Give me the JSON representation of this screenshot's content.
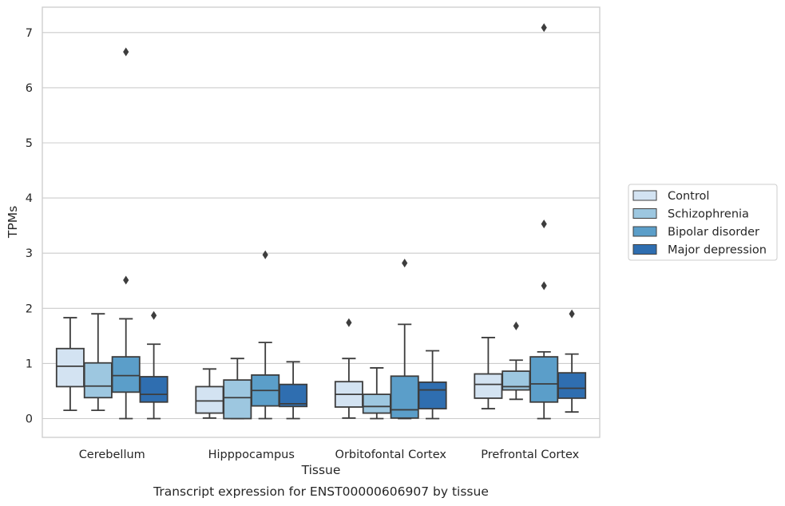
{
  "chart_data": {
    "type": "box",
    "caption": "Transcript expression for ENST00000606907 by tissue",
    "xlabel": "Tissue",
    "ylabel": "TPMs",
    "ylim": [
      -0.35,
      7.45
    ],
    "yticks": [
      0,
      1,
      2,
      3,
      4,
      5,
      6,
      7
    ],
    "grid": "horizontal",
    "legend_position": "right",
    "categories": [
      "Cerebellum",
      "Hipppocampus",
      "Orbitofontal Cortex",
      "Prefrontal Cortex"
    ],
    "series": [
      {
        "name": "Control",
        "color": "#d3e3f2",
        "boxes": [
          {
            "whislo": 0.15,
            "q1": 0.58,
            "med": 0.95,
            "q3": 1.27,
            "whishi": 1.83,
            "fliers": []
          },
          {
            "whislo": 0.01,
            "q1": 0.1,
            "med": 0.32,
            "q3": 0.58,
            "whishi": 0.9,
            "fliers": []
          },
          {
            "whislo": 0.01,
            "q1": 0.21,
            "med": 0.44,
            "q3": 0.67,
            "whishi": 1.09,
            "fliers": [
              1.74
            ]
          },
          {
            "whislo": 0.18,
            "q1": 0.37,
            "med": 0.62,
            "q3": 0.81,
            "whishi": 1.47,
            "fliers": []
          }
        ]
      },
      {
        "name": "Schizophrenia",
        "color": "#9dc7e0",
        "boxes": [
          {
            "whislo": 0.15,
            "q1": 0.38,
            "med": 0.59,
            "q3": 1.01,
            "whishi": 1.9,
            "fliers": []
          },
          {
            "whislo": 0.0,
            "q1": 0.0,
            "med": 0.38,
            "q3": 0.7,
            "whishi": 1.09,
            "fliers": []
          },
          {
            "whislo": 0.0,
            "q1": 0.1,
            "med": 0.22,
            "q3": 0.44,
            "whishi": 0.92,
            "fliers": []
          },
          {
            "whislo": 0.35,
            "q1": 0.52,
            "med": 0.58,
            "q3": 0.86,
            "whishi": 1.06,
            "fliers": [
              1.68
            ]
          }
        ]
      },
      {
        "name": "Bipolar disorder",
        "color": "#5b9ec9",
        "boxes": [
          {
            "whislo": 0.0,
            "q1": 0.48,
            "med": 0.78,
            "q3": 1.12,
            "whishi": 1.81,
            "fliers": [
              2.51,
              6.65
            ]
          },
          {
            "whislo": 0.0,
            "q1": 0.23,
            "med": 0.51,
            "q3": 0.79,
            "whishi": 1.38,
            "fliers": [
              2.97
            ]
          },
          {
            "whislo": 0.0,
            "q1": 0.01,
            "med": 0.16,
            "q3": 0.77,
            "whishi": 1.71,
            "fliers": [
              2.82
            ]
          },
          {
            "whislo": 0.0,
            "q1": 0.3,
            "med": 0.63,
            "q3": 1.12,
            "whishi": 1.21,
            "fliers": [
              2.41,
              3.53,
              7.09
            ]
          }
        ]
      },
      {
        "name": "Major depression",
        "color": "#2f6eb0",
        "boxes": [
          {
            "whislo": 0.0,
            "q1": 0.3,
            "med": 0.44,
            "q3": 0.76,
            "whishi": 1.35,
            "fliers": [
              1.87
            ]
          },
          {
            "whislo": 0.0,
            "q1": 0.22,
            "med": 0.27,
            "q3": 0.62,
            "whishi": 1.03,
            "fliers": []
          },
          {
            "whislo": 0.0,
            "q1": 0.18,
            "med": 0.52,
            "q3": 0.66,
            "whishi": 1.23,
            "fliers": []
          },
          {
            "whislo": 0.12,
            "q1": 0.37,
            "med": 0.55,
            "q3": 0.83,
            "whishi": 1.17,
            "fliers": [
              1.9
            ]
          }
        ]
      }
    ]
  }
}
